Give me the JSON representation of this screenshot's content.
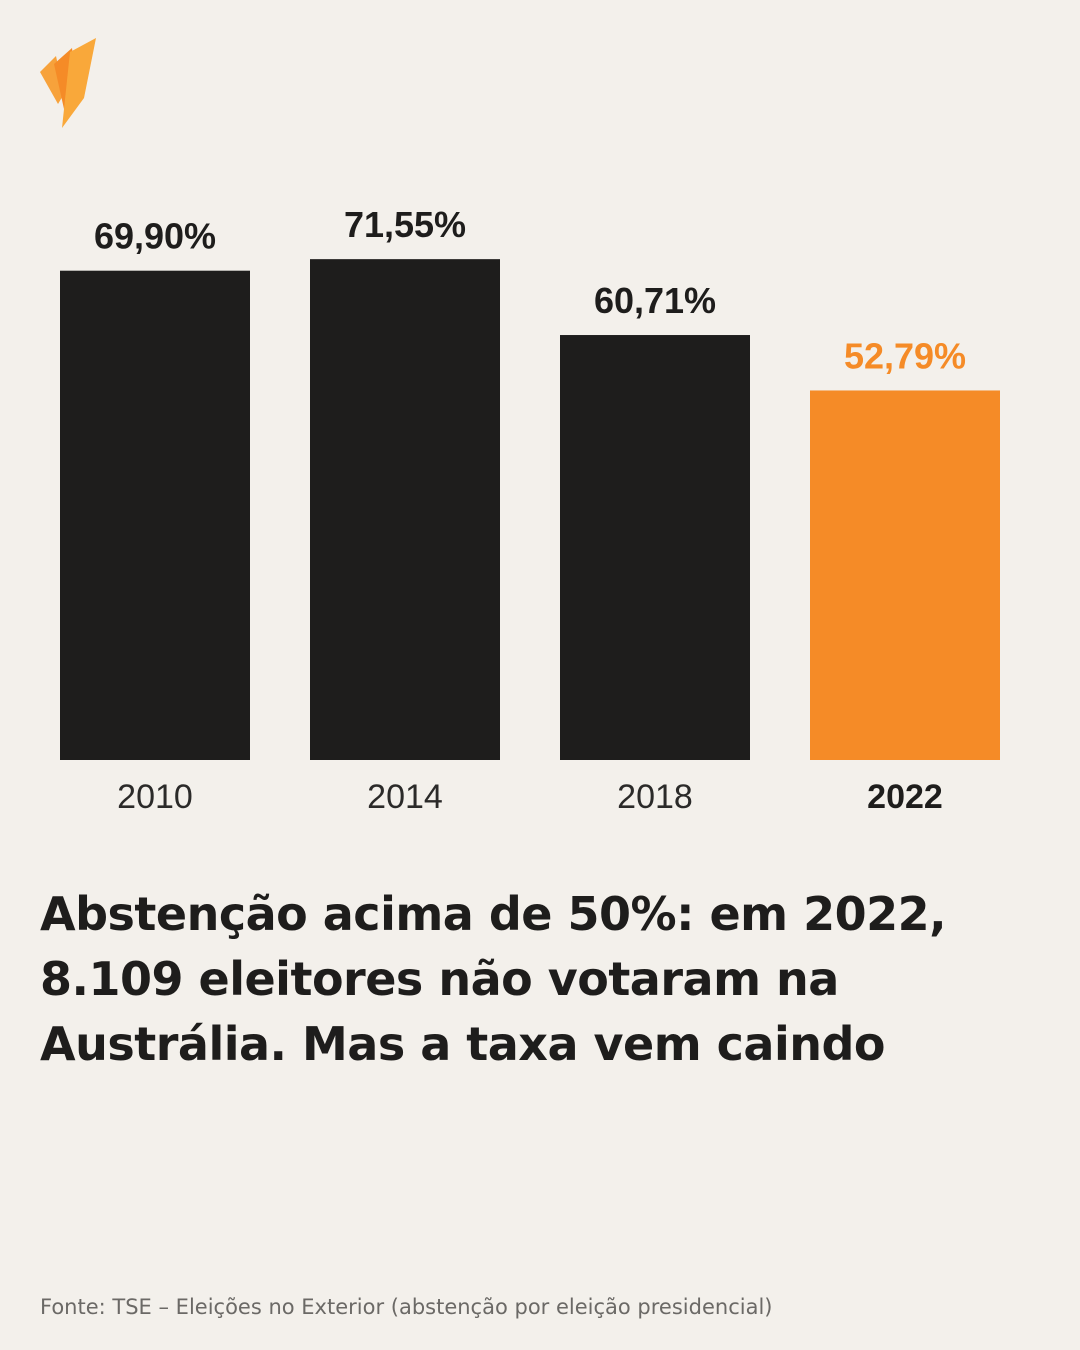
{
  "colors": {
    "background": "#f3f0eb",
    "bar_default": "#1e1d1c",
    "accent": "#f58b27",
    "text": "#1e1d1c",
    "muted": "#6b6966"
  },
  "logo": {
    "icon": "sbs-logo-icon"
  },
  "chart_data": {
    "type": "bar",
    "title": "",
    "xlabel": "",
    "ylabel": "",
    "ylim": [
      0,
      80
    ],
    "grid": false,
    "categories": [
      "2010",
      "2014",
      "2018",
      "2022"
    ],
    "values": [
      69.9,
      71.55,
      60.71,
      52.79
    ],
    "value_labels": [
      "69,90%",
      "71,55%",
      "60,71%",
      "52,79%"
    ],
    "highlight_index": 3
  },
  "headline": {
    "line1": "Abstenção acima de 50%: em 2022,",
    "line2": "8.109 eleitores não votaram na",
    "line3": "Austrália. Mas a taxa vem caindo"
  },
  "source": "Fonte: TSE – Eleições no Exterior (abstenção por eleição presidencial)"
}
